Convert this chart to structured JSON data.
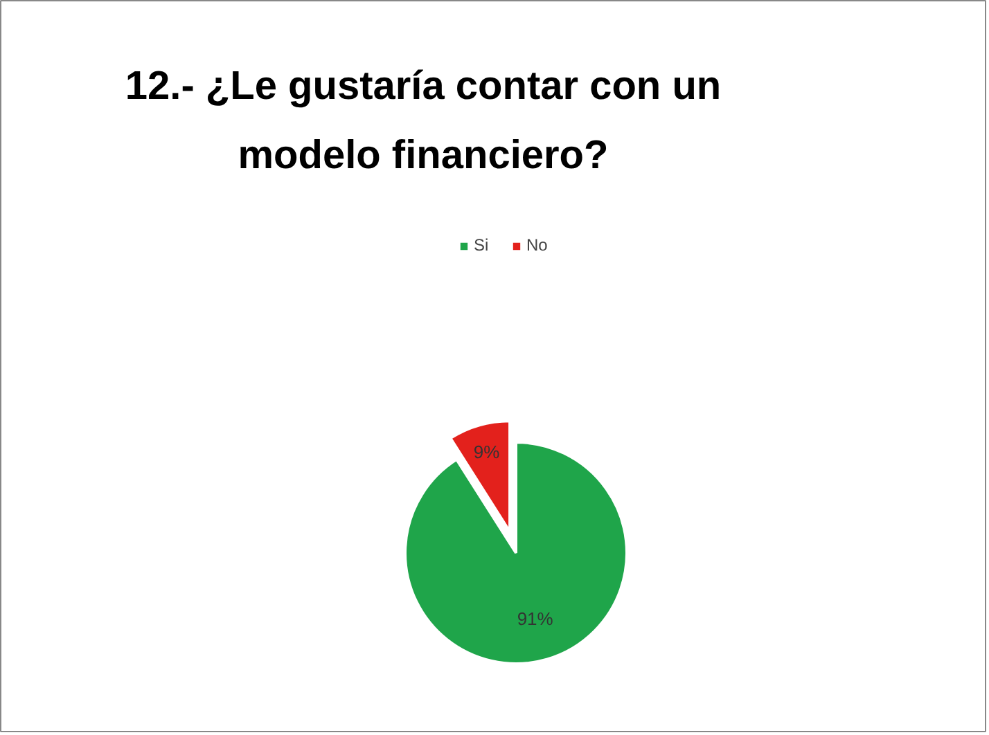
{
  "chart_data": {
    "type": "pie",
    "title": "12.- ¿Le gustaría contar con un modelo financiero?",
    "categories": [
      "Si",
      "No"
    ],
    "values": [
      91,
      9
    ],
    "colors": [
      "#1fa54a",
      "#e3211c"
    ],
    "value_labels": [
      "91%",
      "9%"
    ],
    "legend": "top"
  }
}
